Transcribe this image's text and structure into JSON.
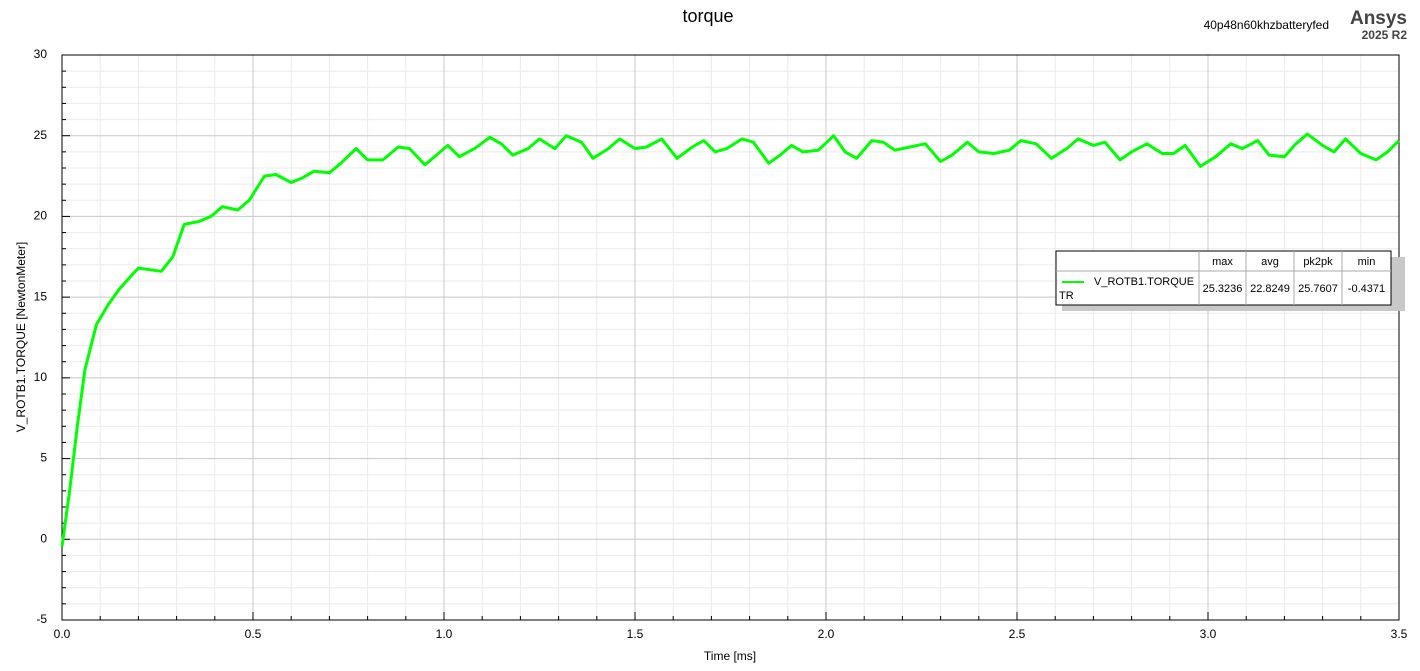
{
  "chart_data": {
    "type": "line",
    "title": "torque",
    "subtitle": "40p48n60khzbatteryfed",
    "brand": "Ansys",
    "version": "2025 R2",
    "xlabel": "Time [ms]",
    "ylabel": "V_ROTB1.TORQUE [NewtonMeter]",
    "x": [
      0,
      0.02,
      0.04,
      0.06,
      0.09,
      0.12,
      0.15,
      0.18,
      0.2,
      0.23,
      0.26,
      0.29,
      0.32,
      0.36,
      0.39,
      0.42,
      0.46,
      0.49,
      0.53,
      0.56,
      0.6,
      0.63,
      0.66,
      0.7,
      0.73,
      0.77,
      0.8,
      0.84,
      0.88,
      0.91,
      0.95,
      0.98,
      1.01,
      1.04,
      1.08,
      1.12,
      1.15,
      1.18,
      1.22,
      1.25,
      1.29,
      1.32,
      1.36,
      1.39,
      1.43,
      1.46,
      1.5,
      1.53,
      1.57,
      1.61,
      1.65,
      1.68,
      1.71,
      1.74,
      1.78,
      1.81,
      1.85,
      1.88,
      1.91,
      1.94,
      1.98,
      2.02,
      2.05,
      2.08,
      2.12,
      2.15,
      2.18,
      2.22,
      2.26,
      2.3,
      2.33,
      2.37,
      2.4,
      2.44,
      2.48,
      2.51,
      2.55,
      2.59,
      2.63,
      2.66,
      2.7,
      2.73,
      2.77,
      2.8,
      2.84,
      2.88,
      2.91,
      2.94,
      2.98,
      3.02,
      3.06,
      3.09,
      3.13,
      3.16,
      3.2,
      3.23,
      3.26,
      3.3,
      3.33,
      3.36,
      3.4,
      3.44,
      3.47,
      3.5
    ],
    "series": [
      {
        "name": "V_ROTB1.TORQUE",
        "color": "#00ff00",
        "values": [
          -0.44,
          3,
          7,
          10.5,
          13.3,
          14.5,
          15.5,
          16.3,
          16.8,
          16.7,
          16.6,
          17.5,
          19.5,
          19.7,
          20.0,
          20.6,
          20.4,
          21.0,
          22.5,
          22.6,
          22.1,
          22.4,
          22.8,
          22.7,
          23.3,
          24.2,
          23.5,
          23.5,
          24.3,
          24.2,
          23.2,
          23.8,
          24.4,
          23.7,
          24.2,
          24.9,
          24.5,
          23.8,
          24.2,
          24.8,
          24.2,
          25.0,
          24.6,
          23.6,
          24.2,
          24.8,
          24.2,
          24.3,
          24.8,
          23.6,
          24.3,
          24.7,
          24.0,
          24.2,
          24.8,
          24.6,
          23.3,
          23.8,
          24.4,
          24.0,
          24.1,
          25.0,
          24.0,
          23.6,
          24.7,
          24.6,
          24.1,
          24.3,
          24.5,
          23.4,
          23.8,
          24.6,
          24.0,
          23.9,
          24.1,
          24.7,
          24.5,
          23.6,
          24.2,
          24.8,
          24.4,
          24.6,
          23.5,
          24.0,
          24.5,
          23.9,
          23.9,
          24.4,
          23.1,
          23.7,
          24.5,
          24.2,
          24.7,
          23.8,
          23.7,
          24.5,
          25.1,
          24.4,
          24.0,
          24.8,
          23.9,
          23.5,
          24.0,
          24.7
        ]
      }
    ],
    "xlim": [
      0,
      3.5
    ],
    "ylim": [
      -5,
      30
    ],
    "xticks": [
      {
        "value": 0,
        "label": "0.0"
      },
      0.5,
      {
        "value": 1,
        "label": "1.0"
      },
      1.5,
      {
        "value": 2,
        "label": "2.0"
      },
      2.5,
      {
        "value": 3,
        "label": "3.0"
      },
      3.5
    ],
    "yticks": [
      -5,
      0,
      5,
      10,
      15,
      20,
      25,
      30
    ],
    "grid": true,
    "legend": {
      "label": "TR",
      "columns": [
        "max",
        "avg",
        "pk2pk",
        "min"
      ],
      "values": [
        25.3236,
        22.8249,
        25.7607,
        -0.4371
      ]
    }
  }
}
